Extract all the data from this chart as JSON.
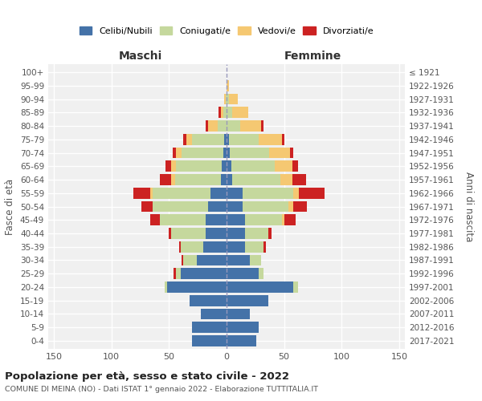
{
  "age_groups": [
    "0-4",
    "5-9",
    "10-14",
    "15-19",
    "20-24",
    "25-29",
    "30-34",
    "35-39",
    "40-44",
    "45-49",
    "50-54",
    "55-59",
    "60-64",
    "65-69",
    "70-74",
    "75-79",
    "80-84",
    "85-89",
    "90-94",
    "95-99",
    "100+"
  ],
  "birth_years": [
    "2017-2021",
    "2012-2016",
    "2007-2011",
    "2002-2006",
    "1997-2001",
    "1992-1996",
    "1987-1991",
    "1982-1986",
    "1977-1981",
    "1972-1976",
    "1967-1971",
    "1962-1966",
    "1957-1961",
    "1952-1956",
    "1947-1951",
    "1942-1946",
    "1937-1941",
    "1932-1936",
    "1927-1931",
    "1922-1926",
    "≤ 1921"
  ],
  "male": {
    "celibi": [
      30,
      30,
      22,
      32,
      52,
      40,
      26,
      20,
      18,
      18,
      16,
      14,
      5,
      4,
      3,
      2,
      0,
      0,
      0,
      0,
      0
    ],
    "coniugati": [
      0,
      0,
      0,
      0,
      2,
      4,
      12,
      20,
      30,
      40,
      48,
      50,
      40,
      40,
      36,
      28,
      8,
      3,
      1,
      0,
      0
    ],
    "vedovi": [
      0,
      0,
      0,
      0,
      0,
      0,
      0,
      0,
      0,
      0,
      0,
      2,
      3,
      4,
      5,
      5,
      8,
      2,
      1,
      0,
      0
    ],
    "divorziati": [
      0,
      0,
      0,
      0,
      0,
      2,
      1,
      1,
      2,
      8,
      10,
      15,
      10,
      5,
      3,
      3,
      2,
      2,
      0,
      0,
      0
    ]
  },
  "female": {
    "nubili": [
      26,
      28,
      20,
      36,
      58,
      28,
      20,
      16,
      16,
      16,
      14,
      14,
      5,
      4,
      3,
      2,
      0,
      0,
      0,
      0,
      0
    ],
    "coniugate": [
      0,
      0,
      0,
      0,
      4,
      4,
      10,
      16,
      20,
      32,
      40,
      44,
      42,
      38,
      34,
      26,
      12,
      5,
      2,
      0,
      0
    ],
    "vedove": [
      0,
      0,
      0,
      0,
      0,
      0,
      0,
      0,
      0,
      2,
      4,
      5,
      10,
      15,
      18,
      20,
      18,
      14,
      8,
      2,
      0
    ],
    "divorziate": [
      0,
      0,
      0,
      0,
      0,
      0,
      0,
      2,
      3,
      10,
      12,
      22,
      12,
      5,
      3,
      2,
      2,
      0,
      0,
      0,
      0
    ]
  },
  "colors": {
    "celibi": "#4472a8",
    "coniugati": "#c5d89d",
    "vedovi": "#f5c872",
    "divorziati": "#cc2222"
  },
  "xlim": 155,
  "title": "Popolazione per età, sesso e stato civile - 2022",
  "subtitle": "COMUNE DI MEINA (NO) - Dati ISTAT 1° gennaio 2022 - Elaborazione TUTTITALIA.IT",
  "ylabel_left": "Fasce di età",
  "ylabel_right": "Anni di nascita",
  "xlabel_maschi": "Maschi",
  "xlabel_femmine": "Femmine",
  "legend_labels": [
    "Celibi/Nubili",
    "Coniugati/e",
    "Vedovi/e",
    "Divorziati/e"
  ],
  "bg_color": "#f0f0f0"
}
